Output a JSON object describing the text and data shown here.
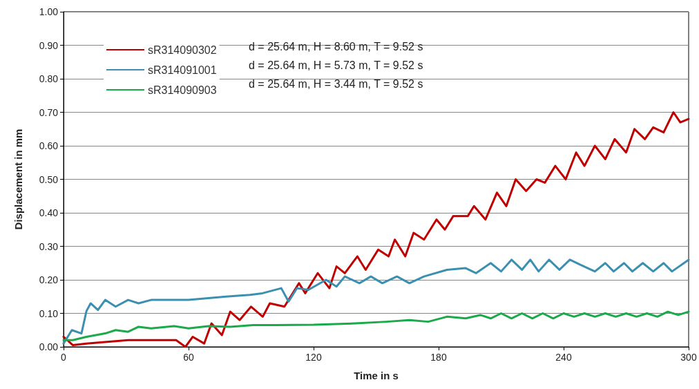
{
  "chart_data": {
    "type": "line",
    "xlabel": "Time in s",
    "ylabel": "Displacement in mm",
    "xlim": [
      0,
      300
    ],
    "xticks": [
      0,
      60,
      120,
      180,
      240,
      300
    ],
    "ylim": [
      0,
      1
    ],
    "yticks": [
      {
        "value": 0,
        "label": "0.00"
      },
      {
        "value": 0.1,
        "label": "0.10"
      },
      {
        "value": 0.2,
        "label": "0.20"
      },
      {
        "value": 0.3,
        "label": "0.30"
      },
      {
        "value": 0.4,
        "label": "0.40"
      },
      {
        "value": 0.5,
        "label": "0.50"
      },
      {
        "value": 0.6,
        "label": "0.60"
      },
      {
        "value": 0.7,
        "label": "0.70"
      },
      {
        "value": 0.8,
        "label": "0.80"
      },
      {
        "value": 0.9,
        "label": "0.90"
      },
      {
        "value": 1,
        "label": "1.00"
      }
    ],
    "grid": "y",
    "legend": "top left",
    "marker": "none",
    "line_style": "solid",
    "annotations": [
      "d = 25.64 m, H = 8.60 m, T = 9.52 s",
      "d = 25.64 m, H = 5.73 m, T = 9.52 s",
      "d = 25.64 m, H = 3.44 m, T = 9.52 s"
    ],
    "series": [
      {
        "name": "sR314090302",
        "color": "#c00000",
        "x": [
          0,
          4.5,
          11,
          31,
          54,
          58.5,
          62,
          67.5,
          71,
          76,
          80,
          84.5,
          90,
          95.6,
          99,
          106,
          113,
          116,
          122,
          127.6,
          131,
          135,
          141,
          145,
          151,
          156,
          159,
          164,
          168,
          173,
          179,
          183,
          187,
          194,
          197,
          202.5,
          208,
          212.5,
          217,
          222,
          227,
          231,
          236,
          241,
          246,
          250,
          255,
          260,
          264.5,
          270,
          274,
          279,
          283,
          288,
          292.7,
          296,
          300
        ],
        "values": [
          0.03,
          0.005,
          0.01,
          0.02,
          0.02,
          0,
          0.03,
          0.01,
          0.07,
          0.035,
          0.105,
          0.08,
          0.12,
          0.09,
          0.13,
          0.12,
          0.19,
          0.16,
          0.22,
          0.175,
          0.24,
          0.22,
          0.27,
          0.23,
          0.29,
          0.27,
          0.32,
          0.27,
          0.34,
          0.32,
          0.38,
          0.35,
          0.39,
          0.39,
          0.42,
          0.38,
          0.46,
          0.42,
          0.5,
          0.465,
          0.5,
          0.49,
          0.54,
          0.5,
          0.58,
          0.54,
          0.6,
          0.56,
          0.62,
          0.58,
          0.65,
          0.62,
          0.655,
          0.64,
          0.7,
          0.67,
          0.68
        ]
      },
      {
        "name": "sR314091001",
        "color": "#3b8fb0",
        "x": [
          0,
          4,
          8.6,
          11,
          13,
          16.5,
          20,
          25,
          31,
          36,
          42,
          60,
          78,
          89.5,
          95.5,
          104.5,
          108,
          112,
          117.5,
          126,
          131,
          135,
          142,
          147.5,
          153,
          160,
          166,
          173,
          184,
          193,
          198,
          205,
          210,
          215,
          220,
          224,
          228,
          233,
          238,
          243,
          248,
          255,
          260,
          264,
          269,
          273,
          278,
          283,
          288,
          292,
          300
        ],
        "values": [
          0.01,
          0.05,
          0.04,
          0.107,
          0.13,
          0.11,
          0.14,
          0.12,
          0.14,
          0.13,
          0.14,
          0.14,
          0.15,
          0.155,
          0.16,
          0.175,
          0.135,
          0.175,
          0.17,
          0.2,
          0.18,
          0.21,
          0.19,
          0.21,
          0.19,
          0.21,
          0.19,
          0.21,
          0.23,
          0.235,
          0.22,
          0.25,
          0.225,
          0.26,
          0.23,
          0.26,
          0.225,
          0.26,
          0.23,
          0.26,
          0.245,
          0.225,
          0.25,
          0.225,
          0.25,
          0.225,
          0.25,
          0.225,
          0.25,
          0.225,
          0.26
        ]
      },
      {
        "name": "sR314090903",
        "color": "#1aaa4a",
        "x": [
          0,
          4.5,
          11,
          20,
          25,
          31,
          36,
          42,
          53,
          60,
          69.5,
          80,
          91,
          102,
          120,
          140,
          155,
          166,
          175,
          184,
          193,
          200,
          205,
          210,
          215,
          220,
          225,
          230,
          235,
          240,
          245,
          250,
          255,
          260,
          265,
          270,
          275,
          280,
          285,
          290,
          295,
          300
        ],
        "values": [
          0.02,
          0.02,
          0.03,
          0.04,
          0.05,
          0.045,
          0.06,
          0.055,
          0.062,
          0.055,
          0.062,
          0.06,
          0.065,
          0.065,
          0.066,
          0.07,
          0.075,
          0.08,
          0.075,
          0.09,
          0.085,
          0.095,
          0.085,
          0.1,
          0.085,
          0.1,
          0.085,
          0.1,
          0.085,
          0.1,
          0.09,
          0.1,
          0.09,
          0.1,
          0.09,
          0.1,
          0.09,
          0.1,
          0.09,
          0.105,
          0.095,
          0.105
        ]
      }
    ]
  }
}
